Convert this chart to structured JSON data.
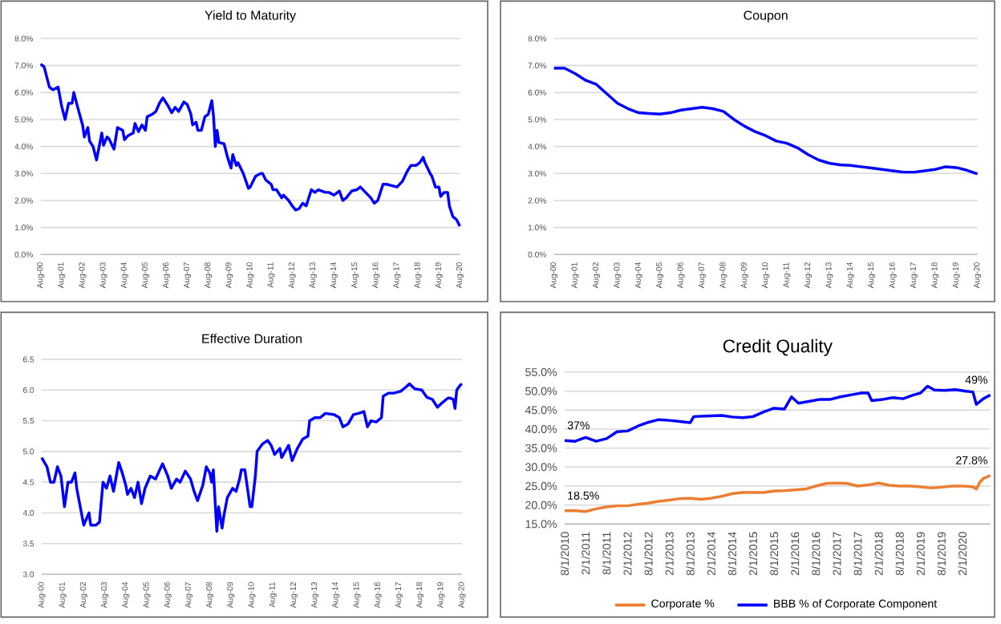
{
  "chart_data": [
    {
      "type": "line",
      "title": "Yield to Maturity",
      "color": "#0000ff",
      "grid": "y",
      "x": [
        "2000-08",
        "2000-10",
        "2001-01",
        "2001-03",
        "2001-06",
        "2001-08",
        "2001-10",
        "2001-12",
        "2002-02",
        "2002-03",
        "2002-05",
        "2002-08",
        "2002-09",
        "2002-11",
        "2002-12",
        "2003-02",
        "2003-04",
        "2003-07",
        "2003-08",
        "2003-10",
        "2003-11",
        "2004-02",
        "2004-04",
        "2004-07",
        "2004-08",
        "2004-10",
        "2005-01",
        "2005-02",
        "2005-04",
        "2005-06",
        "2005-08",
        "2005-09",
        "2005-12",
        "2006-02",
        "2006-04",
        "2006-06",
        "2006-09",
        "2006-11",
        "2007-01",
        "2007-03",
        "2007-06",
        "2007-08",
        "2007-10",
        "2007-11",
        "2008-01",
        "2008-02",
        "2008-04",
        "2008-06",
        "2008-08",
        "2008-10",
        "2008-11",
        "2008-12",
        "2009-01",
        "2009-02",
        "2009-05",
        "2009-07",
        "2009-09",
        "2009-10",
        "2009-12",
        "2010-01",
        "2010-04",
        "2010-07",
        "2010-08",
        "2010-11",
        "2011-02",
        "2011-03",
        "2011-05",
        "2011-08",
        "2011-09",
        "2011-11",
        "2012-02",
        "2012-03",
        "2012-06",
        "2012-08",
        "2012-10",
        "2012-12",
        "2013-02",
        "2013-04",
        "2013-05",
        "2013-07",
        "2013-09",
        "2013-11",
        "2014-03",
        "2014-05",
        "2014-08",
        "2014-11",
        "2015-01",
        "2015-03",
        "2015-06",
        "2015-09",
        "2015-11",
        "2016-02",
        "2016-05",
        "2016-07",
        "2016-09",
        "2016-12",
        "2017-02",
        "2017-05",
        "2017-08",
        "2017-11",
        "2018-02",
        "2018-04",
        "2018-07",
        "2018-09",
        "2018-11",
        "2018-12",
        "2019-03",
        "2019-04",
        "2019-06",
        "2019-08",
        "2019-09",
        "2019-11",
        "2020-01",
        "2020-02",
        "2020-04",
        "2020-06",
        "2020-08"
      ],
      "values": [
        7.05,
        6.95,
        6.2,
        6.1,
        6.2,
        5.5,
        5.0,
        5.6,
        5.6,
        6.0,
        5.5,
        4.8,
        4.35,
        4.7,
        4.2,
        4.0,
        3.5,
        4.5,
        4.05,
        4.35,
        4.3,
        3.9,
        4.7,
        4.6,
        4.25,
        4.4,
        4.5,
        4.85,
        4.55,
        4.8,
        4.6,
        5.1,
        5.2,
        5.3,
        5.6,
        5.8,
        5.5,
        5.25,
        5.45,
        5.3,
        5.65,
        5.55,
        5.2,
        4.8,
        4.9,
        4.6,
        4.6,
        5.1,
        5.2,
        5.7,
        5.1,
        4.0,
        4.6,
        4.15,
        4.1,
        3.6,
        3.2,
        3.7,
        3.3,
        3.4,
        3.0,
        2.45,
        2.5,
        2.9,
        3.0,
        3.0,
        2.75,
        2.6,
        2.4,
        2.4,
        2.1,
        2.2,
        2.0,
        1.8,
        1.65,
        1.7,
        1.9,
        1.8,
        2.0,
        2.4,
        2.3,
        2.4,
        2.3,
        2.3,
        2.2,
        2.35,
        2.0,
        2.1,
        2.35,
        2.4,
        2.5,
        2.3,
        2.1,
        1.9,
        2.0,
        2.6,
        2.6,
        2.55,
        2.5,
        2.7,
        3.1,
        3.3,
        3.3,
        3.4,
        3.6,
        3.4,
        3.0,
        2.9,
        2.5,
        2.5,
        2.15,
        2.3,
        2.3,
        1.8,
        1.4,
        1.3,
        1.05
      ],
      "xlim": [
        "2000-08",
        "2020-08"
      ],
      "xticks": [
        {
          "value": "2000-08",
          "label": "Aug-00"
        },
        {
          "value": "2001-08",
          "label": "Aug-01"
        },
        {
          "value": "2002-08",
          "label": "Aug-02"
        },
        {
          "value": "2003-08",
          "label": "Aug-03"
        },
        {
          "value": "2004-08",
          "label": "Aug-04"
        },
        {
          "value": "2005-08",
          "label": "Aug-05"
        },
        {
          "value": "2006-08",
          "label": "Aug-06"
        },
        {
          "value": "2007-08",
          "label": "Aug-07"
        },
        {
          "value": "2008-08",
          "label": "Aug-08"
        },
        {
          "value": "2009-08",
          "label": "Aug-09"
        },
        {
          "value": "2010-08",
          "label": "Aug-10"
        },
        {
          "value": "2011-08",
          "label": "Aug-11"
        },
        {
          "value": "2012-08",
          "label": "Aug-12"
        },
        {
          "value": "2013-08",
          "label": "Aug-13"
        },
        {
          "value": "2014-08",
          "label": "Aug-14"
        },
        {
          "value": "2015-08",
          "label": "Aug-15"
        },
        {
          "value": "2016-08",
          "label": "Aug-16"
        },
        {
          "value": "2017-08",
          "label": "Aug-17"
        },
        {
          "value": "2018-08",
          "label": "Aug-18"
        },
        {
          "value": "2019-08",
          "label": "Aug-19"
        },
        {
          "value": "2020-08",
          "label": "Aug-20"
        }
      ],
      "ylim": [
        0,
        8
      ],
      "yticks": [
        {
          "value": 0,
          "label": "0.0%"
        },
        {
          "value": 1,
          "label": "1.0%"
        },
        {
          "value": 2,
          "label": "2.0%"
        },
        {
          "value": 3,
          "label": "3.0%"
        },
        {
          "value": 4,
          "label": "4.0%"
        },
        {
          "value": 5,
          "label": "5.0%"
        },
        {
          "value": 6,
          "label": "6.0%"
        },
        {
          "value": 7,
          "label": "7.0%"
        },
        {
          "value": 8,
          "label": "8.0%"
        }
      ]
    },
    {
      "type": "line",
      "title": "Coupon",
      "color": "#0000ff",
      "grid": "y",
      "x": [
        "2000-08",
        "2001-02",
        "2001-08",
        "2002-02",
        "2002-08",
        "2003-02",
        "2003-08",
        "2004-02",
        "2004-08",
        "2005-02",
        "2005-08",
        "2006-02",
        "2006-08",
        "2007-02",
        "2007-08",
        "2008-02",
        "2008-08",
        "2009-02",
        "2009-08",
        "2010-02",
        "2010-08",
        "2011-02",
        "2011-08",
        "2012-02",
        "2012-08",
        "2013-02",
        "2013-08",
        "2014-02",
        "2014-08",
        "2015-02",
        "2015-08",
        "2016-02",
        "2016-08",
        "2017-02",
        "2017-08",
        "2018-02",
        "2018-08",
        "2019-02",
        "2019-08",
        "2020-02",
        "2020-08"
      ],
      "values": [
        6.9,
        6.9,
        6.7,
        6.45,
        6.3,
        5.95,
        5.6,
        5.4,
        5.25,
        5.22,
        5.2,
        5.25,
        5.35,
        5.4,
        5.45,
        5.4,
        5.3,
        5.0,
        4.75,
        4.55,
        4.4,
        4.2,
        4.12,
        3.95,
        3.7,
        3.5,
        3.38,
        3.32,
        3.3,
        3.25,
        3.2,
        3.15,
        3.1,
        3.05,
        3.05,
        3.1,
        3.15,
        3.25,
        3.22,
        3.12,
        2.98
      ],
      "xlim": [
        "2000-08",
        "2020-08"
      ],
      "xticks": [
        {
          "value": "2000-08",
          "label": "Aug-00"
        },
        {
          "value": "2001-08",
          "label": "Aug-01"
        },
        {
          "value": "2002-08",
          "label": "Aug-02"
        },
        {
          "value": "2003-08",
          "label": "Aug-03"
        },
        {
          "value": "2004-08",
          "label": "Aug-04"
        },
        {
          "value": "2005-08",
          "label": "Aug-05"
        },
        {
          "value": "2006-08",
          "label": "Aug-06"
        },
        {
          "value": "2007-08",
          "label": "Aug-07"
        },
        {
          "value": "2008-08",
          "label": "Aug-08"
        },
        {
          "value": "2009-08",
          "label": "Aug-09"
        },
        {
          "value": "2010-08",
          "label": "Aug-10"
        },
        {
          "value": "2011-08",
          "label": "Aug-11"
        },
        {
          "value": "2012-08",
          "label": "Aug-12"
        },
        {
          "value": "2013-08",
          "label": "Aug-13"
        },
        {
          "value": "2014-08",
          "label": "Aug-14"
        },
        {
          "value": "2015-08",
          "label": "Aug-15"
        },
        {
          "value": "2016-08",
          "label": "Aug-16"
        },
        {
          "value": "2017-08",
          "label": "Aug-17"
        },
        {
          "value": "2018-08",
          "label": "Aug-18"
        },
        {
          "value": "2019-08",
          "label": "Aug-19"
        },
        {
          "value": "2020-08",
          "label": "Aug-20"
        }
      ],
      "ylim": [
        0,
        8
      ],
      "yticks": [
        {
          "value": 0,
          "label": "0.0%"
        },
        {
          "value": 1,
          "label": "1.0%"
        },
        {
          "value": 2,
          "label": "2.0%"
        },
        {
          "value": 3,
          "label": "3.0%"
        },
        {
          "value": 4,
          "label": "4.0%"
        },
        {
          "value": 5,
          "label": "5.0%"
        },
        {
          "value": 6,
          "label": "6.0%"
        },
        {
          "value": 7,
          "label": "7.0%"
        },
        {
          "value": 8,
          "label": "8.0%"
        }
      ]
    },
    {
      "type": "line",
      "title": "Effective Duration",
      "color": "#0000ff",
      "grid": "y",
      "x": [
        "2000-08",
        "2000-11",
        "2001-01",
        "2001-03",
        "2001-05",
        "2001-07",
        "2001-09",
        "2001-11",
        "2002-01",
        "2002-03",
        "2002-04",
        "2002-07",
        "2002-08",
        "2002-11",
        "2002-12",
        "2003-03",
        "2003-05",
        "2003-07",
        "2003-09",
        "2003-11",
        "2004-01",
        "2004-04",
        "2004-06",
        "2004-08",
        "2004-09",
        "2004-11",
        "2005-01",
        "2005-03",
        "2005-05",
        "2005-07",
        "2005-10",
        "2006-01",
        "2006-05",
        "2006-08",
        "2006-10",
        "2007-01",
        "2007-03",
        "2007-06",
        "2007-09",
        "2007-11",
        "2008-01",
        "2008-04",
        "2008-06",
        "2008-08",
        "2008-09",
        "2008-10",
        "2008-12",
        "2009-01",
        "2009-03",
        "2009-04",
        "2009-06",
        "2009-09",
        "2009-11",
        "2010-01",
        "2010-02",
        "2010-04",
        "2010-07",
        "2010-08",
        "2010-10",
        "2010-11",
        "2011-02",
        "2011-05",
        "2011-07",
        "2011-09",
        "2011-12",
        "2012-01",
        "2012-05",
        "2012-07",
        "2012-10",
        "2013-01",
        "2013-04",
        "2013-05",
        "2013-08",
        "2013-11",
        "2014-02",
        "2014-07",
        "2014-10",
        "2014-12",
        "2015-03",
        "2015-06",
        "2015-09",
        "2015-12",
        "2016-02",
        "2016-04",
        "2016-07",
        "2016-10",
        "2016-11",
        "2017-02",
        "2017-05",
        "2017-09",
        "2017-12",
        "2018-02",
        "2018-05",
        "2018-09",
        "2018-12",
        "2019-03",
        "2019-06",
        "2019-09",
        "2019-12",
        "2020-01",
        "2020-03",
        "2020-04",
        "2020-05",
        "2020-07",
        "2020-08"
      ],
      "values": [
        4.9,
        4.75,
        4.5,
        4.5,
        4.75,
        4.6,
        4.1,
        4.5,
        4.5,
        4.65,
        4.4,
        3.95,
        3.8,
        4.0,
        3.8,
        3.8,
        3.85,
        4.5,
        4.4,
        4.6,
        4.35,
        4.82,
        4.65,
        4.45,
        4.3,
        4.4,
        4.25,
        4.5,
        4.15,
        4.4,
        4.6,
        4.55,
        4.8,
        4.6,
        4.4,
        4.55,
        4.5,
        4.68,
        4.55,
        4.35,
        4.2,
        4.45,
        4.75,
        4.65,
        4.5,
        4.7,
        3.7,
        4.1,
        3.75,
        3.95,
        4.25,
        4.4,
        4.35,
        4.55,
        4.7,
        4.7,
        4.1,
        4.1,
        4.6,
        5.0,
        5.12,
        5.18,
        5.1,
        4.95,
        5.05,
        4.9,
        5.1,
        4.85,
        5.05,
        5.2,
        5.25,
        5.5,
        5.55,
        5.55,
        5.62,
        5.6,
        5.55,
        5.4,
        5.45,
        5.6,
        5.62,
        5.65,
        5.4,
        5.5,
        5.48,
        5.55,
        5.9,
        5.95,
        5.95,
        5.98,
        6.05,
        6.1,
        6.02,
        6.0,
        5.88,
        5.85,
        5.72,
        5.8,
        5.87,
        5.87,
        5.85,
        5.7,
        6.0,
        6.08,
        6.1
      ],
      "xlim": [
        "2000-08",
        "2020-08"
      ],
      "xticks": [
        {
          "value": "2000-08",
          "label": "Aug-00"
        },
        {
          "value": "2001-08",
          "label": "Aug-01"
        },
        {
          "value": "2002-08",
          "label": "Aug-02"
        },
        {
          "value": "2003-08",
          "label": "Aug-03"
        },
        {
          "value": "2004-08",
          "label": "Aug-04"
        },
        {
          "value": "2005-08",
          "label": "Aug-05"
        },
        {
          "value": "2006-08",
          "label": "Aug-06"
        },
        {
          "value": "2007-08",
          "label": "Aug-07"
        },
        {
          "value": "2008-08",
          "label": "Aug-08"
        },
        {
          "value": "2009-08",
          "label": "Aug-09"
        },
        {
          "value": "2010-08",
          "label": "Aug-10"
        },
        {
          "value": "2011-08",
          "label": "Aug-11"
        },
        {
          "value": "2012-08",
          "label": "Aug-12"
        },
        {
          "value": "2013-08",
          "label": "Aug-13"
        },
        {
          "value": "2014-08",
          "label": "Aug-14"
        },
        {
          "value": "2015-08",
          "label": "Aug-15"
        },
        {
          "value": "2016-08",
          "label": "Aug-16"
        },
        {
          "value": "2017-08",
          "label": "Aug-17"
        },
        {
          "value": "2018-08",
          "label": "Aug-18"
        },
        {
          "value": "2019-08",
          "label": "Aug-19"
        },
        {
          "value": "2020-08",
          "label": "Aug-20"
        }
      ],
      "ylim": [
        3,
        6.5
      ],
      "yticks": [
        {
          "value": 3,
          "label": "3.0"
        },
        3.5,
        {
          "value": 4,
          "label": "4.0"
        },
        4.5,
        {
          "value": 5,
          "label": "5.0"
        },
        5.5,
        {
          "value": 6,
          "label": "6.0"
        },
        6.5
      ]
    },
    {
      "type": "line",
      "title": "Credit Quality",
      "grid": "y",
      "legend": "bottom",
      "series": [
        {
          "name": "Corporate %",
          "color": "#ed7d31",
          "x": [
            "2010-08",
            "2010-11",
            "2011-02",
            "2011-05",
            "2011-08",
            "2011-11",
            "2012-02",
            "2012-05",
            "2012-08",
            "2012-11",
            "2013-02",
            "2013-05",
            "2013-08",
            "2013-11",
            "2014-02",
            "2014-05",
            "2014-08",
            "2014-11",
            "2015-02",
            "2015-05",
            "2015-08",
            "2015-11",
            "2016-02",
            "2016-05",
            "2016-08",
            "2016-11",
            "2017-02",
            "2017-05",
            "2017-08",
            "2017-11",
            "2018-02",
            "2018-05",
            "2018-08",
            "2018-11",
            "2019-02",
            "2019-05",
            "2019-08",
            "2019-11",
            "2020-02",
            "2020-05",
            "2020-06",
            "2020-07",
            "2020-08",
            "2020-10"
          ],
          "values": [
            18.5,
            18.5,
            18.3,
            19.0,
            19.5,
            19.8,
            19.8,
            20.2,
            20.5,
            21.0,
            21.3,
            21.7,
            21.8,
            21.5,
            21.8,
            22.3,
            23.0,
            23.3,
            23.3,
            23.3,
            23.7,
            23.8,
            24.0,
            24.2,
            25.0,
            25.7,
            25.8,
            25.7,
            25.0,
            25.3,
            25.8,
            25.2,
            25.0,
            25.0,
            24.8,
            24.5,
            24.7,
            25.0,
            25.0,
            24.8,
            24.2,
            26.0,
            27.0,
            27.8
          ]
        },
        {
          "name": "BBB % of Corporate Component",
          "color": "#0000ff",
          "x": [
            "2010-08",
            "2010-11",
            "2011-02",
            "2011-05",
            "2011-08",
            "2011-11",
            "2012-02",
            "2012-05",
            "2012-08",
            "2012-11",
            "2013-02",
            "2013-05",
            "2013-08",
            "2013-09",
            "2014-02",
            "2014-05",
            "2014-08",
            "2014-11",
            "2015-02",
            "2015-05",
            "2015-08",
            "2015-11",
            "2016-01",
            "2016-03",
            "2016-06",
            "2016-09",
            "2016-12",
            "2017-03",
            "2017-06",
            "2017-09",
            "2017-11",
            "2017-12",
            "2018-03",
            "2018-06",
            "2018-09",
            "2018-12",
            "2019-02",
            "2019-04",
            "2019-06",
            "2019-09",
            "2019-12",
            "2020-03",
            "2020-05",
            "2020-06",
            "2020-08",
            "2020-10"
          ],
          "values": [
            37.0,
            36.8,
            37.8,
            36.8,
            37.5,
            39.3,
            39.5,
            40.8,
            41.8,
            42.5,
            42.3,
            42.0,
            41.7,
            43.3,
            43.5,
            43.6,
            43.2,
            43.0,
            43.3,
            44.5,
            45.5,
            45.3,
            48.5,
            46.8,
            47.3,
            47.8,
            47.8,
            48.5,
            49.0,
            49.5,
            49.5,
            47.5,
            47.8,
            48.3,
            48.0,
            49.0,
            49.5,
            51.3,
            50.3,
            50.2,
            50.4,
            50.0,
            49.8,
            46.5,
            48.0,
            49.0
          ]
        }
      ],
      "annotations": [
        {
          "text": "37%",
          "x": "2010-08",
          "y": 37
        },
        {
          "text": "49%",
          "x": "2020-10",
          "y": 49
        },
        {
          "text": "18.5%",
          "x": "2010-08",
          "y": 18.5
        },
        {
          "text": "27.8%",
          "x": "2020-10",
          "y": 27.8
        }
      ],
      "xlim": [
        "2010-08",
        "2020-10"
      ],
      "xticks": [
        {
          "value": "2010-08",
          "label": "8/1/2010"
        },
        {
          "value": "2011-02",
          "label": "2/1/2011"
        },
        {
          "value": "2011-08",
          "label": "8/1/2011"
        },
        {
          "value": "2012-02",
          "label": "2/1/2012"
        },
        {
          "value": "2012-08",
          "label": "8/1/2012"
        },
        {
          "value": "2013-02",
          "label": "2/1/2013"
        },
        {
          "value": "2013-08",
          "label": "8/1/2013"
        },
        {
          "value": "2014-02",
          "label": "2/1/2014"
        },
        {
          "value": "2014-08",
          "label": "8/1/2014"
        },
        {
          "value": "2015-02",
          "label": "2/1/2015"
        },
        {
          "value": "2015-08",
          "label": "8/1/2015"
        },
        {
          "value": "2016-02",
          "label": "2/1/2016"
        },
        {
          "value": "2016-08",
          "label": "8/1/2016"
        },
        {
          "value": "2017-02",
          "label": "2/1/2017"
        },
        {
          "value": "2017-08",
          "label": "8/1/2017"
        },
        {
          "value": "2018-02",
          "label": "2/1/2018"
        },
        {
          "value": "2018-08",
          "label": "8/1/2018"
        },
        {
          "value": "2019-02",
          "label": "2/1/2019"
        },
        {
          "value": "2019-08",
          "label": "8/1/2019"
        },
        {
          "value": "2020-02",
          "label": "2/1/2020"
        }
      ],
      "ylim": [
        15,
        55
      ],
      "yticks": [
        {
          "value": 15,
          "label": "15.0%"
        },
        {
          "value": 20,
          "label": "20.0%"
        },
        {
          "value": 25,
          "label": "25.0%"
        },
        {
          "value": 30,
          "label": "30.0%"
        },
        {
          "value": 35,
          "label": "35.0%"
        },
        {
          "value": 40,
          "label": "40.0%"
        },
        {
          "value": 45,
          "label": "45.0%"
        },
        {
          "value": 50,
          "label": "50.0%"
        },
        {
          "value": 55,
          "label": "55.0%"
        }
      ]
    }
  ]
}
